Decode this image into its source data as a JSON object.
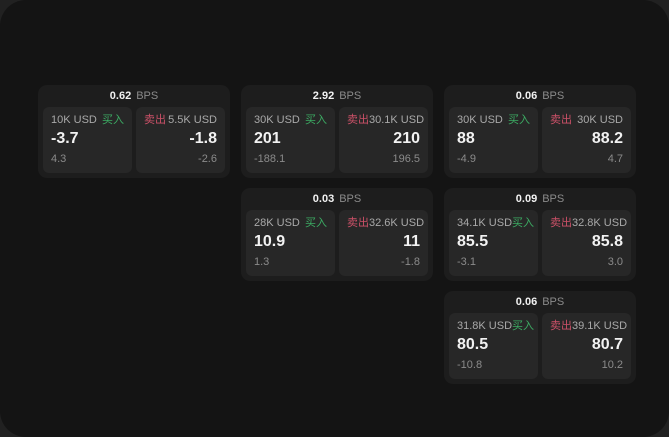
{
  "colors": {
    "page_bg": "#212121",
    "window_bg": "#141414",
    "card_bg": "#1d1d1d",
    "panel_bg": "#272727",
    "buy_green": "#3cab63",
    "sell_red": "#cc5168",
    "value_white": "#f2f2f2",
    "label_gray": "#a9a9a9",
    "muted_gray": "#8b8b8b"
  },
  "labels": {
    "unit": "BPS",
    "buy": "买入",
    "sell": "卖出"
  },
  "cards": [
    {
      "bps": "0.62",
      "buy": {
        "size": "10K USD",
        "value": "-3.7",
        "delta": "4.3"
      },
      "sell": {
        "size": "5.5K USD",
        "value": "-1.8",
        "delta": "-2.6"
      }
    },
    {
      "bps": "2.92",
      "buy": {
        "size": "30K USD",
        "value": "201",
        "delta": "-188.1"
      },
      "sell": {
        "size": "30.1K USD",
        "value": "210",
        "delta": "196.5"
      }
    },
    {
      "bps": "0.06",
      "buy": {
        "size": "30K USD",
        "value": "88",
        "delta": "-4.9"
      },
      "sell": {
        "size": "30K USD",
        "value": "88.2",
        "delta": "4.7"
      }
    },
    {
      "bps": "0.03",
      "buy": {
        "size": "28K USD",
        "value": "10.9",
        "delta": "1.3"
      },
      "sell": {
        "size": "32.6K USD",
        "value": "11",
        "delta": "-1.8"
      }
    },
    {
      "bps": "0.09",
      "buy": {
        "size": "34.1K USD",
        "value": "85.5",
        "delta": "-3.1"
      },
      "sell": {
        "size": "32.8K USD",
        "value": "85.8",
        "delta": "3.0"
      }
    },
    {
      "bps": "0.06",
      "buy": {
        "size": "31.8K USD",
        "value": "80.5",
        "delta": "-10.8"
      },
      "sell": {
        "size": "39.1K USD",
        "value": "80.7",
        "delta": "10.2"
      }
    }
  ]
}
